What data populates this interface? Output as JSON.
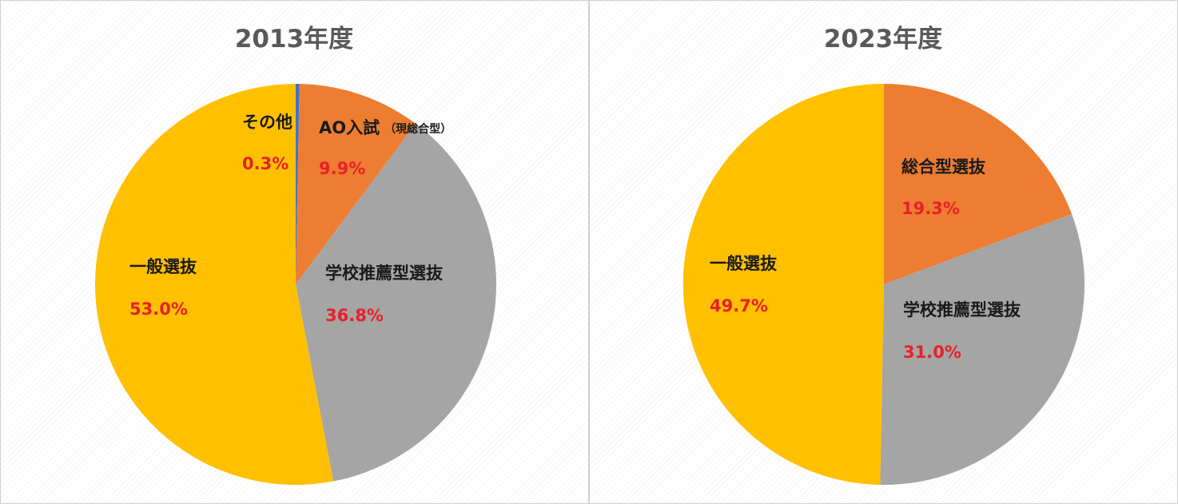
{
  "chart_data": [
    {
      "type": "pie",
      "title": "2013年度",
      "slices": [
        {
          "label": "その他",
          "label_note": "",
          "value": 0.3,
          "value_label": "0.3%",
          "color": "#4472C4"
        },
        {
          "label": "AO入試",
          "label_note": "（現総合型）",
          "value": 9.9,
          "value_label": "9.9%",
          "color": "#ED7D31"
        },
        {
          "label": "学校推薦型選抜",
          "label_note": "",
          "value": 36.8,
          "value_label": "36.8%",
          "color": "#A5A5A5"
        },
        {
          "label": "一般選抜",
          "label_note": "",
          "value": 53.0,
          "value_label": "53.0%",
          "color": "#FFC000"
        }
      ]
    },
    {
      "type": "pie",
      "title": "2023年度",
      "slices": [
        {
          "label": "総合型選抜",
          "label_note": "",
          "value": 19.3,
          "value_label": "19.3%",
          "color": "#ED7D31"
        },
        {
          "label": "学校推薦型選抜",
          "label_note": "",
          "value": 31.0,
          "value_label": "31.0%",
          "color": "#A5A5A5"
        },
        {
          "label": "一般選抜",
          "label_note": "",
          "value": 49.7,
          "value_label": "49.7%",
          "color": "#FFC000"
        }
      ]
    }
  ],
  "colors": {
    "value_label": "#E8202A",
    "title": "#595959"
  }
}
